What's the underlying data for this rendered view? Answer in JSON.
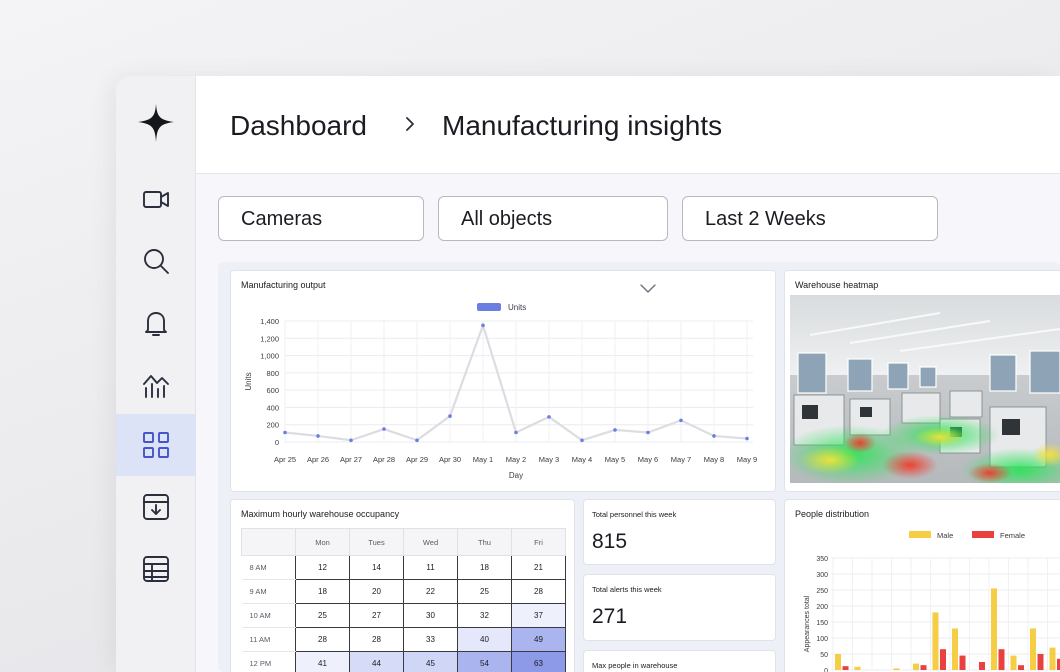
{
  "sidebar": {
    "logo": "spark-logo",
    "items": [
      {
        "icon": "video-camera-icon",
        "label": "Cameras"
      },
      {
        "icon": "search-icon",
        "label": "Search"
      },
      {
        "icon": "bell-icon",
        "label": "Alerts"
      },
      {
        "icon": "analytics-icon",
        "label": "Analytics"
      },
      {
        "icon": "grid-icon",
        "label": "Dashboards",
        "active": true
      },
      {
        "icon": "archive-download-icon",
        "label": "Archive"
      },
      {
        "icon": "table-icon",
        "label": "Tables"
      }
    ]
  },
  "header": {
    "breadcrumb_home": "Dashboard",
    "breadcrumb_current": "Manufacturing insights"
  },
  "filters": {
    "cameras": "Cameras",
    "objects": "All objects",
    "range": "Last 2 Weeks"
  },
  "output_card": {
    "title": "Manufacturing output",
    "chart_data": {
      "type": "line",
      "title": "",
      "xlabel": "Day",
      "ylabel": "Units",
      "legend": [
        {
          "name": "Units",
          "color": "#6b7fe3"
        }
      ],
      "x": [
        "Apr 25",
        "Apr 26",
        "Apr 27",
        "Apr 28",
        "Apr 29",
        "Apr 30",
        "May 1",
        "May 2",
        "May 3",
        "May 4",
        "May 5",
        "May 6",
        "May 7",
        "May 8",
        "May 9"
      ],
      "series": [
        {
          "name": "Units",
          "values": [
            110,
            70,
            20,
            150,
            20,
            300,
            1350,
            110,
            290,
            20,
            140,
            110,
            250,
            70,
            40
          ]
        }
      ],
      "ylim": [
        0,
        1400
      ],
      "yticks": [
        "1,400",
        "1,200",
        "1,000",
        "800",
        "600",
        "400",
        "200",
        "0"
      ],
      "grid": true,
      "legend_position": "top-center"
    }
  },
  "heatmap_card": {
    "title": "Warehouse heatmap"
  },
  "occupancy_card": {
    "title": "Maximum hourly warehouse occupancy",
    "columns": [
      "Mon",
      "Tues",
      "Wed",
      "Thu",
      "Fri"
    ],
    "rows": [
      {
        "time": "8 AM",
        "values": [
          "12",
          "14",
          "11",
          "18",
          "21"
        ]
      },
      {
        "time": "9 AM",
        "values": [
          "18",
          "20",
          "22",
          "25",
          "28"
        ]
      },
      {
        "time": "10 AM",
        "values": [
          "25",
          "27",
          "30",
          "32",
          "37"
        ]
      },
      {
        "time": "11 AM",
        "values": [
          "28",
          "28",
          "33",
          "40",
          "49"
        ]
      },
      {
        "time": "12 PM",
        "values": [
          "41",
          "44",
          "45",
          "54",
          "63"
        ]
      }
    ],
    "cell_colors": [
      [
        "#ffffff",
        "#ffffff",
        "#ffffff",
        "#ffffff",
        "#ffffff"
      ],
      [
        "#ffffff",
        "#ffffff",
        "#ffffff",
        "#ffffff",
        "#ffffff"
      ],
      [
        "#ffffff",
        "#ffffff",
        "#ffffff",
        "#ffffff",
        "#eef1fb"
      ],
      [
        "#ffffff",
        "#ffffff",
        "#ffffff",
        "#e4e8fa",
        "#aab5ef"
      ],
      [
        "#eef1fb",
        "#d6dcf7",
        "#d0d6f6",
        "#aab5ef",
        "#8c9ae8"
      ]
    ]
  },
  "stats": {
    "personnel_label": "Total personnel this week",
    "personnel_value": "815",
    "alerts_label": "Total alerts this week",
    "alerts_value": "271",
    "max_people_label": "Max people in warehouse"
  },
  "distribution_card": {
    "title": "People distribution",
    "chart_data": {
      "type": "bar",
      "title": "",
      "xlabel": "",
      "ylabel": "Appearances total",
      "series": [
        {
          "name": "Male",
          "color": "#f5ce45",
          "values": [
            50,
            10,
            0,
            5,
            20,
            180,
            130,
            0,
            255,
            45,
            130,
            70,
            130
          ]
        },
        {
          "name": "Female",
          "color": "#e8413f",
          "values": [
            12,
            0,
            0,
            0,
            15,
            65,
            45,
            25,
            65,
            15,
            50,
            35,
            45
          ]
        }
      ],
      "ylim": [
        0,
        350
      ],
      "yticks": [
        "350",
        "300",
        "250",
        "200",
        "150",
        "100",
        "50",
        "0"
      ],
      "grid": true,
      "legend_position": "top-center"
    }
  }
}
